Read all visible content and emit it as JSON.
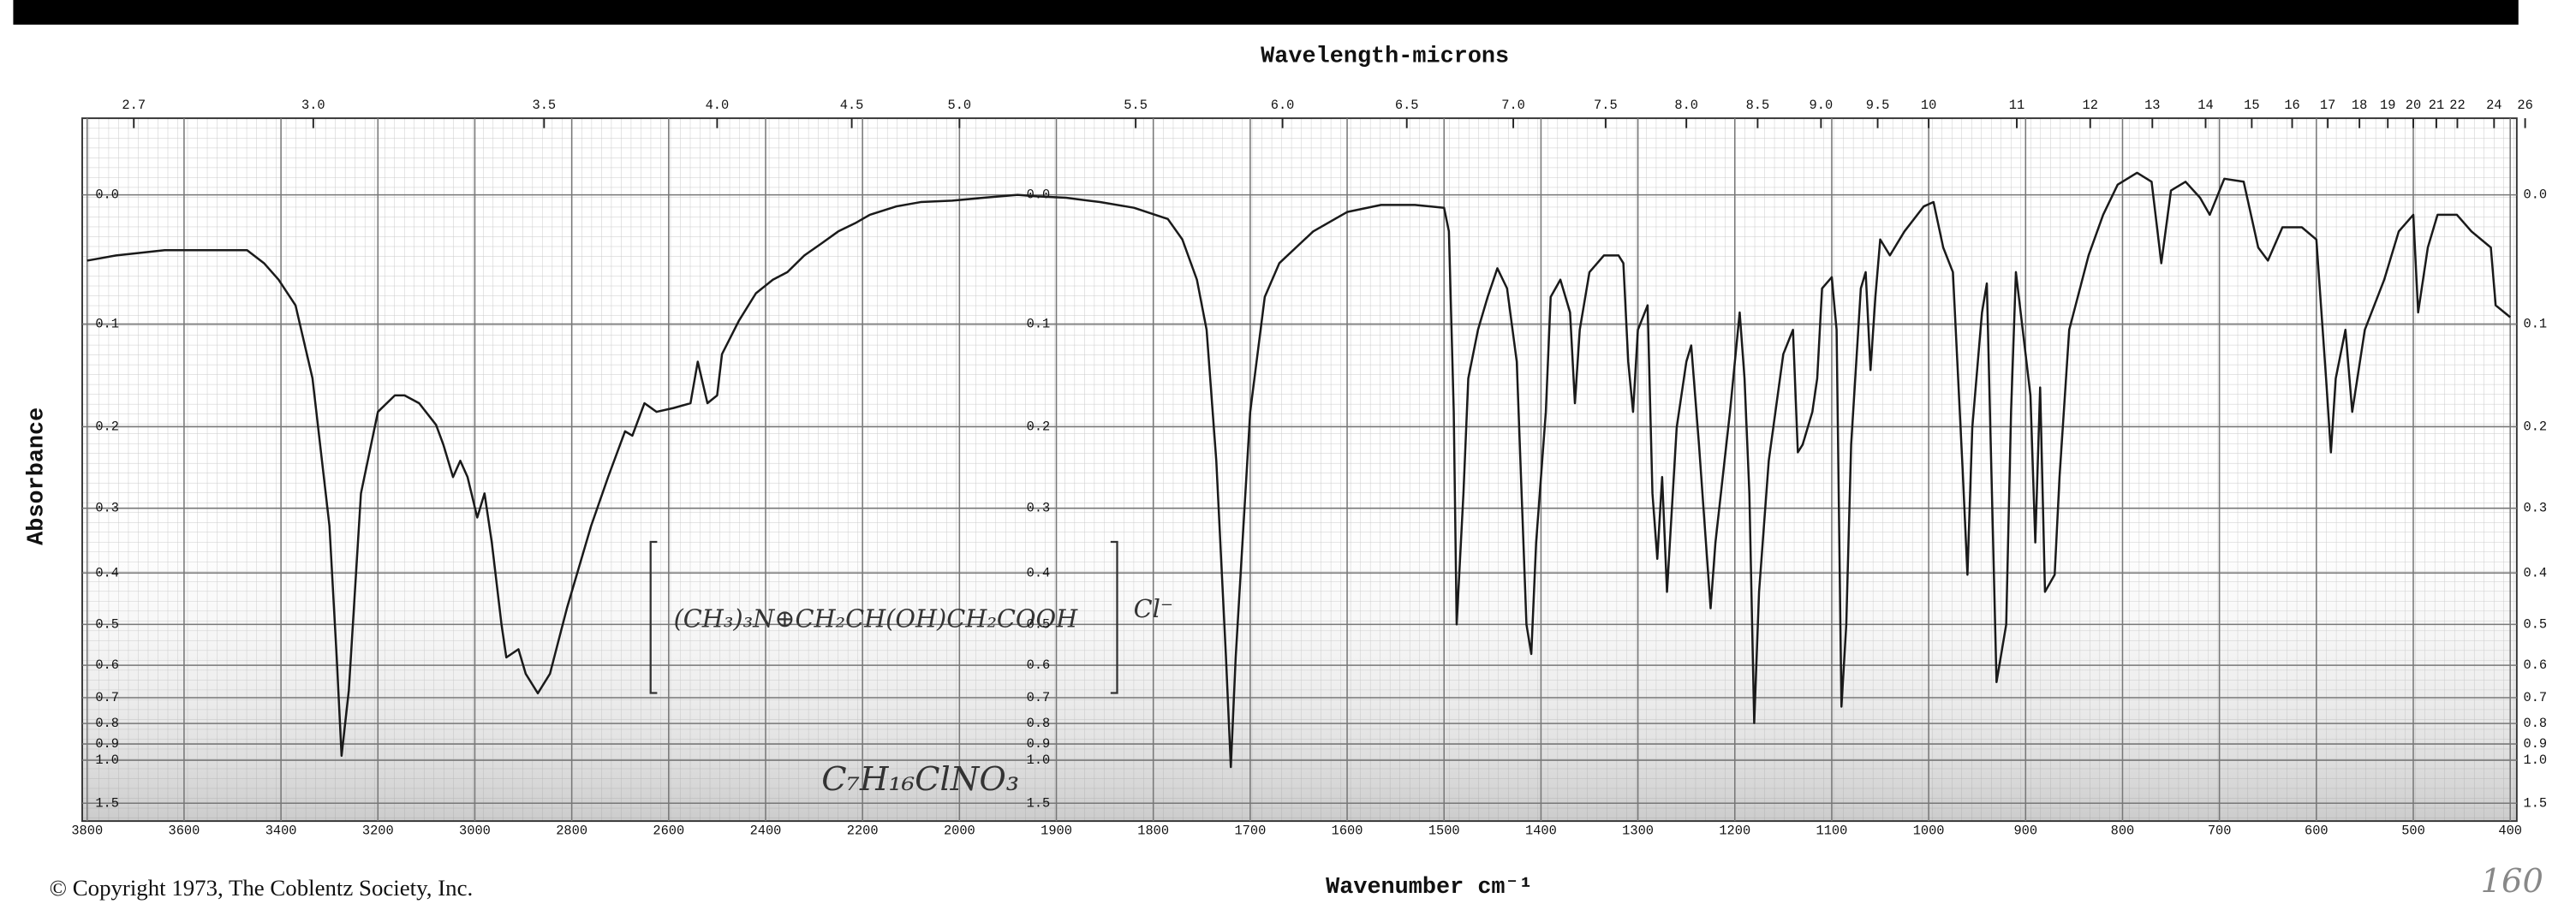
{
  "chart_data": {
    "type": "line",
    "x2_label": "Wavelength-microns",
    "xlabel": "Wavenumber cm⁻¹",
    "ylabel": "Absorbance",
    "copyright": "© Copyright 1973, The Coblentz Society, Inc.",
    "annotations": [
      "(CH₃)₃N⊕CH₂CH(OH)CH₂COOH",
      "Cl⁻",
      "C₇H₁₆ClNO₃",
      "160"
    ],
    "color": "#1a1a1a",
    "grid": true,
    "xscale": {
      "type": "split",
      "break": 2000,
      "ratio": 2
    },
    "yscale": "absorbance",
    "xlim": [
      3800,
      400
    ],
    "ylim": [
      -0.05,
      2.5
    ],
    "xticks": [
      3800,
      3600,
      3400,
      3200,
      3000,
      2800,
      2600,
      2400,
      2200,
      2000,
      1900,
      1800,
      1700,
      1600,
      1500,
      1400,
      1300,
      1200,
      1100,
      1000,
      900,
      800,
      700,
      600,
      500,
      400
    ],
    "x2ticks": [
      2.7,
      {
        "value": 3,
        "label": "3.0"
      },
      3.5,
      {
        "value": 4,
        "label": "4.0"
      },
      4.5,
      {
        "value": 5,
        "label": "5.0"
      },
      5.5,
      {
        "value": 6,
        "label": "6.0"
      },
      6.5,
      {
        "value": 7,
        "label": "7.0"
      },
      7.5,
      {
        "value": 8,
        "label": "8.0"
      },
      8.5,
      {
        "value": 9,
        "label": "9.0"
      },
      9.5,
      10,
      11,
      12,
      13,
      14,
      15,
      16,
      17,
      18,
      19,
      20,
      21,
      22,
      24,
      26
    ],
    "yticks": [
      {
        "value": 0,
        "label": "0.0"
      },
      0.1,
      0.2,
      0.3,
      0.4,
      0.5,
      0.6,
      0.7,
      0.8,
      0.9,
      {
        "value": 1,
        "label": "1.0"
      },
      1.5
    ],
    "x": [
      3800,
      3740,
      3640,
      3470,
      3435,
      3405,
      3370,
      3335,
      3300,
      3285,
      3275,
      3260,
      3235,
      3200,
      3165,
      3145,
      3115,
      3080,
      3065,
      3045,
      3030,
      3015,
      2995,
      2980,
      2965,
      2945,
      2935,
      2910,
      2895,
      2870,
      2845,
      2810,
      2760,
      2725,
      2690,
      2675,
      2650,
      2625,
      2590,
      2555,
      2540,
      2520,
      2500,
      2490,
      2455,
      2420,
      2385,
      2355,
      2320,
      2285,
      2250,
      2215,
      2185,
      2130,
      2080,
      2015,
      1975,
      1940,
      1920,
      1890,
      1855,
      1820,
      1785,
      1770,
      1755,
      1745,
      1735,
      1725,
      1720,
      1715,
      1700,
      1685,
      1670,
      1635,
      1600,
      1565,
      1530,
      1500,
      1495,
      1490,
      1487,
      1480,
      1475,
      1465,
      1455,
      1445,
      1435,
      1425,
      1420,
      1415,
      1410,
      1405,
      1395,
      1390,
      1380,
      1370,
      1365,
      1360,
      1350,
      1335,
      1320,
      1315,
      1310,
      1305,
      1300,
      1290,
      1285,
      1280,
      1275,
      1270,
      1260,
      1250,
      1245,
      1237,
      1225,
      1220,
      1205,
      1195,
      1190,
      1185,
      1180,
      1175,
      1165,
      1150,
      1140,
      1135,
      1130,
      1120,
      1115,
      1110,
      1100,
      1095,
      1090,
      1085,
      1080,
      1070,
      1065,
      1060,
      1055,
      1050,
      1040,
      1025,
      1005,
      995,
      985,
      975,
      965,
      960,
      955,
      945,
      940,
      930,
      920,
      915,
      910,
      895,
      890,
      885,
      880,
      870,
      865,
      855,
      835,
      820,
      805,
      785,
      770,
      760,
      750,
      735,
      720,
      710,
      695,
      675,
      660,
      650,
      635,
      615,
      600,
      590,
      585,
      580,
      570,
      563,
      550,
      530,
      515,
      500,
      495,
      485,
      475,
      455,
      440,
      420,
      415,
      400
    ],
    "values": [
      0.048,
      0.044,
      0.04,
      0.04,
      0.05,
      0.063,
      0.084,
      0.15,
      0.325,
      0.579,
      0.97,
      0.675,
      0.28,
      0.184,
      0.167,
      0.167,
      0.175,
      0.198,
      0.22,
      0.259,
      0.239,
      0.259,
      0.313,
      0.28,
      0.35,
      0.5,
      0.579,
      0.558,
      0.624,
      0.685,
      0.624,
      0.466,
      0.325,
      0.259,
      0.205,
      0.21,
      0.175,
      0.184,
      0.18,
      0.175,
      0.134,
      0.175,
      0.167,
      0.127,
      0.097,
      0.074,
      0.063,
      0.057,
      0.044,
      0.035,
      0.026,
      0.02,
      0.014,
      0.008,
      0.005,
      0.004,
      0.002,
      0,
      0.001,
      0.002,
      0.005,
      0.009,
      0.017,
      0.032,
      0.063,
      0.105,
      0.239,
      0.579,
      1.05,
      0.579,
      0.184,
      0.077,
      0.05,
      0.026,
      0.012,
      0.007,
      0.007,
      0.009,
      0.026,
      0.184,
      0.5,
      0.28,
      0.15,
      0.105,
      0.077,
      0.054,
      0.07,
      0.134,
      0.28,
      0.5,
      0.57,
      0.35,
      0.184,
      0.077,
      0.063,
      0.09,
      0.175,
      0.105,
      0.057,
      0.044,
      0.044,
      0.05,
      0.134,
      0.184,
      0.105,
      0.084,
      0.28,
      0.376,
      0.259,
      0.434,
      0.201,
      0.134,
      0.119,
      0.22,
      0.466,
      0.35,
      0.184,
      0.09,
      0.15,
      0.28,
      0.798,
      0.434,
      0.239,
      0.127,
      0.105,
      0.229,
      0.22,
      0.184,
      0.15,
      0.07,
      0.061,
      0.105,
      0.732,
      0.5,
      0.22,
      0.07,
      0.057,
      0.142,
      0.077,
      0.032,
      0.044,
      0.026,
      0.008,
      0.005,
      0.038,
      0.057,
      0.249,
      0.403,
      0.201,
      0.09,
      0.066,
      0.649,
      0.5,
      0.184,
      0.057,
      0.167,
      0.35,
      0.159,
      0.434,
      0.403,
      0.259,
      0.105,
      0.044,
      0.014,
      -0.007,
      -0.015,
      -0.009,
      0.05,
      -0.003,
      -0.009,
      0.002,
      0.014,
      -0.011,
      -0.009,
      0.038,
      0.048,
      0.023,
      0.023,
      0.032,
      0.15,
      0.229,
      0.15,
      0.105,
      0.184,
      0.105,
      0.063,
      0.026,
      0.014,
      0.09,
      0.038,
      0.014,
      0.014,
      0.026,
      0.038,
      0.084,
      0.094
    ]
  }
}
